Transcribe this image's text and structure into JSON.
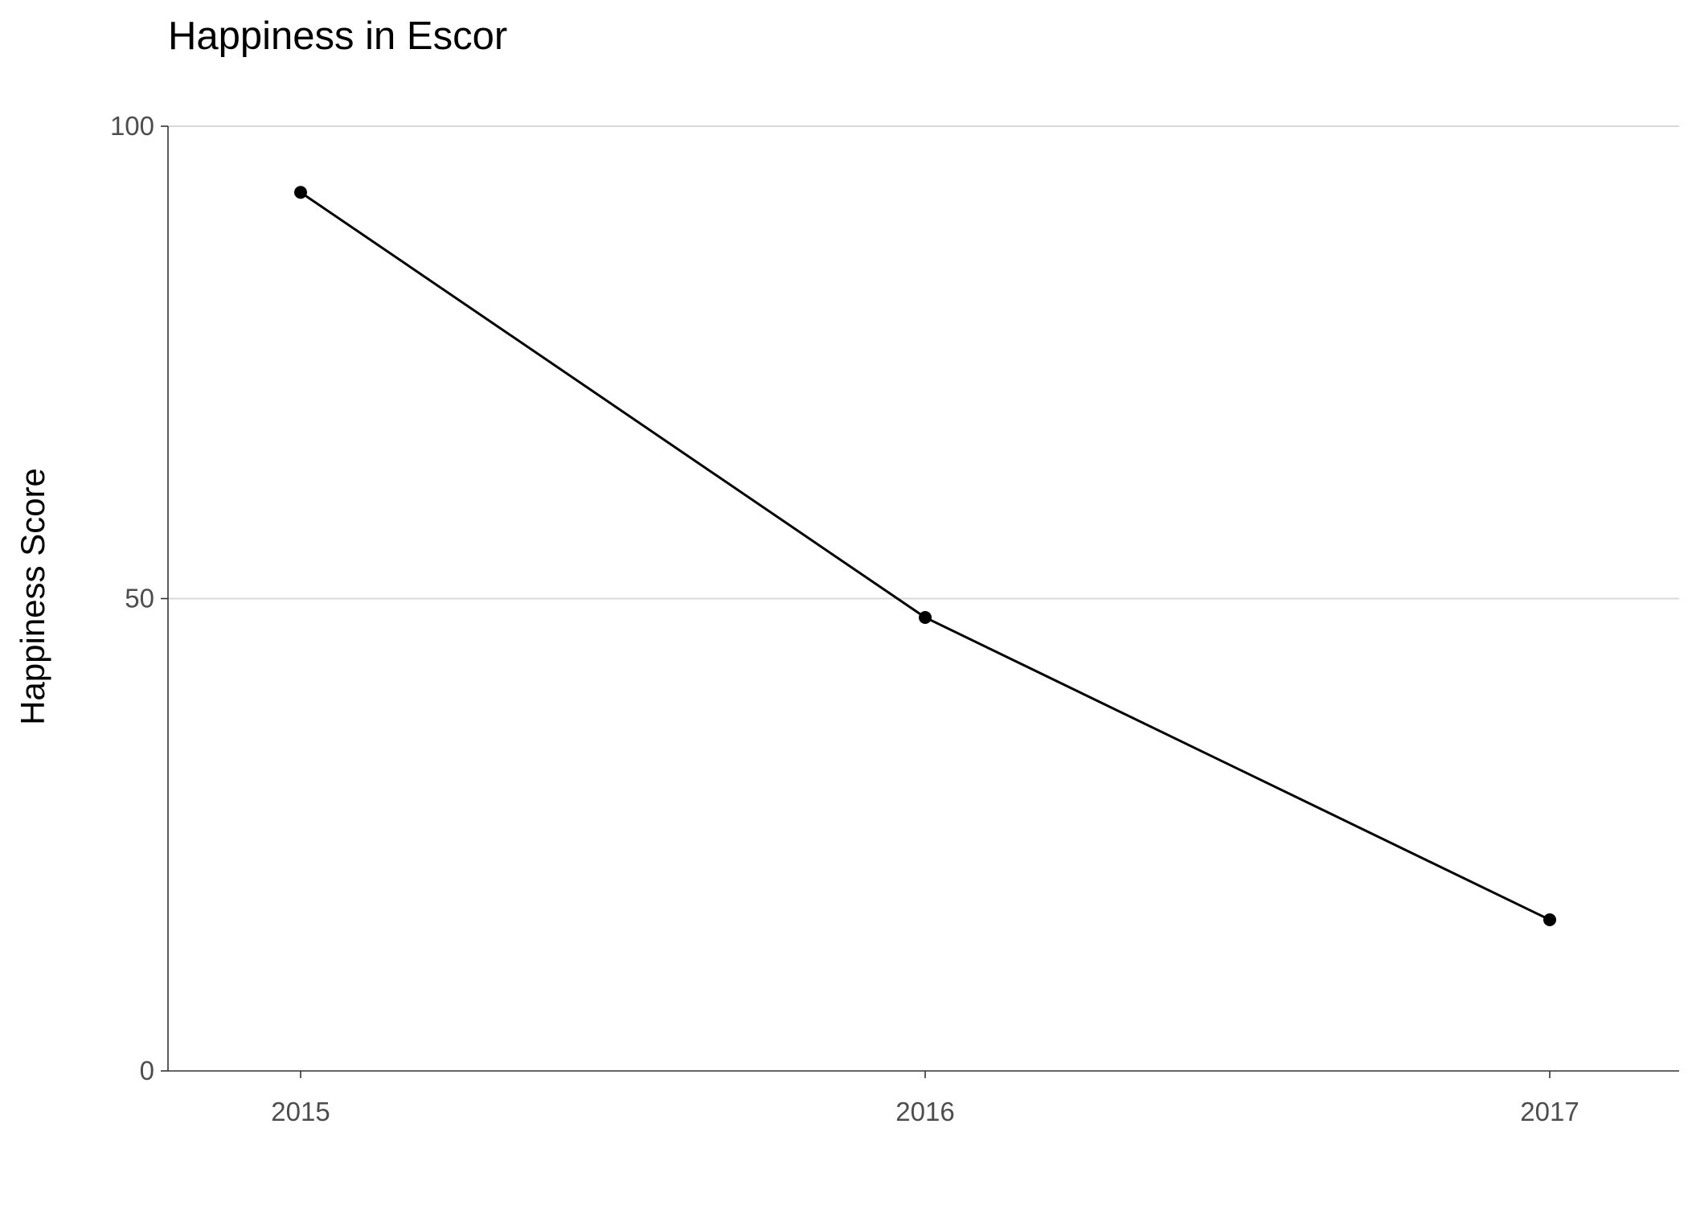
{
  "chart_data": {
    "type": "line",
    "title": "Happiness in Escor",
    "xlabel": "",
    "ylabel": "Happiness Score",
    "categories": [
      "2015",
      "2016",
      "2017"
    ],
    "x": [
      2015,
      2016,
      2017
    ],
    "series": [
      {
        "values": [
          93,
          48,
          16
        ]
      }
    ],
    "yticks": [
      0,
      50,
      100
    ],
    "ylim": [
      0,
      100
    ],
    "grid": "horizontal-major",
    "legend": "none",
    "colors": {
      "line": "#000000",
      "points": "#000000",
      "grid": "#d9d9d9",
      "axis": "#333333",
      "tick_label": "#4d4d4d"
    }
  }
}
